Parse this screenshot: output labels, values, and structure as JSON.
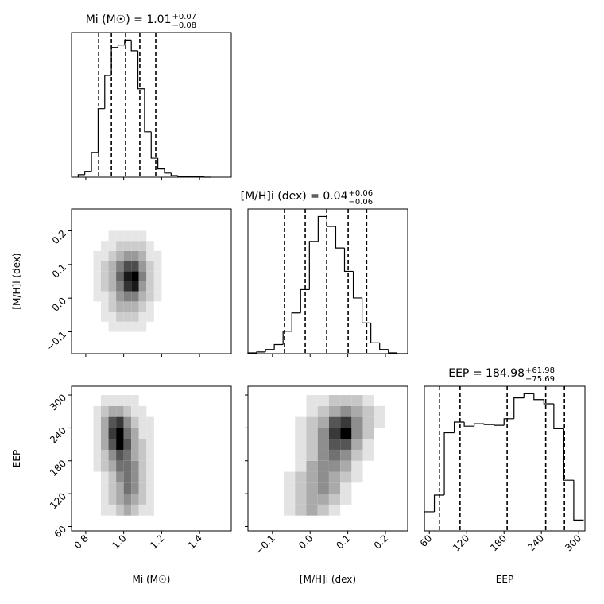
{
  "chart_data": [
    {
      "type": "histogram",
      "title": "Mi (M☉) = 1.01",
      "title_upper": "+0.07",
      "title_lower": "−0.08",
      "xlim": [
        0.725,
        1.567
      ],
      "ylim": [
        0,
        175
      ],
      "bins": [
        0.76,
        0.795,
        0.83,
        0.865,
        0.9,
        0.935,
        0.97,
        1.005,
        1.04,
        1.075,
        1.11,
        1.145,
        1.18,
        1.215,
        1.25,
        1.285,
        1.32,
        1.355,
        1.39,
        1.425,
        1.46
      ],
      "values": [
        3,
        7,
        30,
        83,
        123,
        157,
        160,
        166,
        153,
        107,
        55,
        23,
        10,
        5,
        2,
        1,
        1,
        1,
        0.5,
        0
      ],
      "quantiles": [
        0.868,
        0.935,
        1.01,
        1.085,
        1.169
      ]
    },
    {
      "type": "density2d",
      "ylabel": "[M/H]i (dex)",
      "xlim": [
        0.725,
        1.567
      ],
      "ylim": [
        -0.165,
        0.265
      ],
      "yticks": [
        {
          "value": -0.1,
          "label": "−0.1"
        },
        {
          "value": 0,
          "label": "0.0"
        },
        0.1,
        0.2
      ],
      "xbins": [
        0.84,
        0.88,
        0.92,
        0.96,
        1.0,
        1.04,
        1.08,
        1.12,
        1.16,
        1.2,
        1.24
      ],
      "ybins": [
        -0.1,
        -0.07,
        -0.04,
        -0.01,
        0.02,
        0.05,
        0.08,
        0.11,
        0.14,
        0.17,
        0.2
      ],
      "z": [
        [
          0,
          0,
          1,
          1,
          1,
          1,
          1,
          0,
          0,
          0
        ],
        [
          0,
          1,
          1,
          2,
          2,
          2,
          1,
          1,
          0,
          0
        ],
        [
          0,
          1,
          2,
          3,
          3,
          3,
          2,
          1,
          0,
          0
        ],
        [
          1,
          1,
          2,
          4,
          5,
          5,
          3,
          2,
          1,
          0
        ],
        [
          1,
          2,
          3,
          5,
          8,
          9,
          4,
          2,
          1,
          0
        ],
        [
          1,
          2,
          3,
          6,
          9,
          10,
          5,
          2,
          1,
          0
        ],
        [
          1,
          2,
          3,
          5,
          7,
          7,
          4,
          2,
          1,
          0
        ],
        [
          1,
          1,
          2,
          3,
          4,
          4,
          3,
          1,
          1,
          0
        ],
        [
          0,
          1,
          1,
          2,
          2,
          2,
          2,
          1,
          0,
          0
        ],
        [
          0,
          0,
          1,
          1,
          1,
          1,
          1,
          0,
          0,
          0
        ]
      ]
    },
    {
      "type": "histogram",
      "title": "[M/H]i (dex) = 0.04",
      "title_upper": "+0.06",
      "title_lower": "−0.06",
      "xlim": [
        -0.165,
        0.259
      ],
      "ylim": [
        0,
        174
      ],
      "bins": [
        -0.165,
        -0.1417,
        -0.1184,
        -0.0951,
        -0.0718,
        -0.0485,
        -0.0252,
        -0.0019,
        0.0214,
        0.0447,
        0.068,
        0.0913,
        0.1146,
        0.1379,
        0.1612,
        0.1845,
        0.2078,
        0.2311,
        0.259
      ],
      "values": [
        1,
        2,
        5,
        11,
        27,
        49,
        77,
        135,
        165,
        153,
        127,
        99,
        67,
        37,
        13,
        5,
        1,
        0
      ],
      "quantiles": [
        -0.068,
        -0.013,
        0.044,
        0.101,
        0.15
      ]
    },
    {
      "type": "density2d",
      "xlabel": "Mi (M☉)",
      "ylabel": "EEP",
      "xlim": [
        0.725,
        1.567
      ],
      "ylim": [
        52,
        316
      ],
      "xticks": [
        0.8,
        {
          "value": 1,
          "label": "1.0"
        },
        1.2,
        1.4
      ],
      "yticks": [
        60,
        120,
        180,
        240,
        300
      ],
      "xbins": [
        0.84,
        0.88,
        0.92,
        0.96,
        1.0,
        1.04,
        1.08,
        1.12,
        1.16,
        1.2,
        1.24
      ],
      "ybins": [
        80,
        100,
        120,
        140,
        160,
        180,
        200,
        220,
        240,
        260,
        280,
        300
      ],
      "z": [
        [
          0,
          1,
          1,
          2,
          3,
          2,
          1,
          1,
          0,
          0
        ],
        [
          0,
          1,
          2,
          3,
          4,
          3,
          2,
          1,
          0,
          0
        ],
        [
          0,
          1,
          2,
          3,
          5,
          4,
          2,
          1,
          0,
          0
        ],
        [
          0,
          1,
          2,
          4,
          5,
          4,
          2,
          1,
          0,
          0
        ],
        [
          1,
          2,
          3,
          5,
          5,
          4,
          2,
          1,
          0,
          0
        ],
        [
          1,
          2,
          4,
          6,
          5,
          3,
          2,
          1,
          0,
          0
        ],
        [
          1,
          3,
          6,
          9,
          6,
          3,
          2,
          1,
          0,
          0
        ],
        [
          1,
          3,
          7,
          9,
          5,
          3,
          1,
          1,
          0,
          0
        ],
        [
          1,
          3,
          6,
          7,
          4,
          2,
          1,
          1,
          0,
          0
        ],
        [
          1,
          2,
          3,
          3,
          2,
          1,
          1,
          0,
          0,
          0
        ],
        [
          0,
          1,
          1,
          1,
          1,
          1,
          0,
          0,
          0,
          0
        ]
      ]
    },
    {
      "type": "density2d",
      "xlabel": "[M/H]i (dex)",
      "xlim": [
        -0.165,
        0.259
      ],
      "ylim": [
        52,
        316
      ],
      "xticks": [
        {
          "value": -0.1,
          "label": "−0.1"
        },
        {
          "value": 0,
          "label": "0.0"
        },
        0.1,
        0.2
      ],
      "xbins": [
        -0.1,
        -0.07,
        -0.04,
        -0.01,
        0.02,
        0.05,
        0.08,
        0.11,
        0.14,
        0.17,
        0.2
      ],
      "ybins": [
        80,
        100,
        120,
        140,
        160,
        180,
        200,
        220,
        240,
        260,
        280,
        300
      ],
      "z": [
        [
          0,
          1,
          2,
          3,
          2,
          1,
          0,
          0,
          0,
          0
        ],
        [
          0,
          1,
          2,
          3,
          3,
          2,
          1,
          0,
          0,
          0
        ],
        [
          0,
          1,
          2,
          3,
          4,
          3,
          1,
          0,
          0,
          0
        ],
        [
          0,
          1,
          2,
          3,
          4,
          3,
          2,
          1,
          0,
          0
        ],
        [
          0,
          0,
          1,
          3,
          4,
          4,
          3,
          1,
          0,
          0
        ],
        [
          0,
          0,
          1,
          2,
          4,
          5,
          4,
          2,
          1,
          0
        ],
        [
          0,
          0,
          1,
          2,
          4,
          6,
          6,
          3,
          1,
          0
        ],
        [
          0,
          0,
          1,
          2,
          4,
          7,
          9,
          4,
          2,
          0
        ],
        [
          0,
          0,
          1,
          2,
          3,
          6,
          7,
          4,
          2,
          1
        ],
        [
          0,
          0,
          0,
          1,
          2,
          3,
          4,
          3,
          2,
          1
        ],
        [
          0,
          0,
          0,
          1,
          1,
          2,
          2,
          2,
          1,
          0
        ]
      ]
    },
    {
      "type": "histogram",
      "title": "EEP = 184.98",
      "title_upper": "+61.98",
      "title_lower": "−75.69",
      "xlabel": "EEP",
      "xlim": [
        52,
        310
      ],
      "ylim": [
        0,
        174
      ],
      "xticks": [
        60,
        120,
        180,
        240,
        300
      ],
      "bins": [
        52,
        68,
        84,
        100,
        116,
        132,
        148,
        164,
        180,
        196,
        212,
        228,
        244,
        260,
        276,
        292,
        308
      ],
      "values": [
        23,
        43,
        118,
        131,
        126,
        129,
        128,
        127,
        135,
        160,
        165,
        158,
        153,
        123,
        61,
        13
      ],
      "quantiles": [
        76,
        109.29,
        184.98,
        246.96,
        277
      ]
    }
  ]
}
